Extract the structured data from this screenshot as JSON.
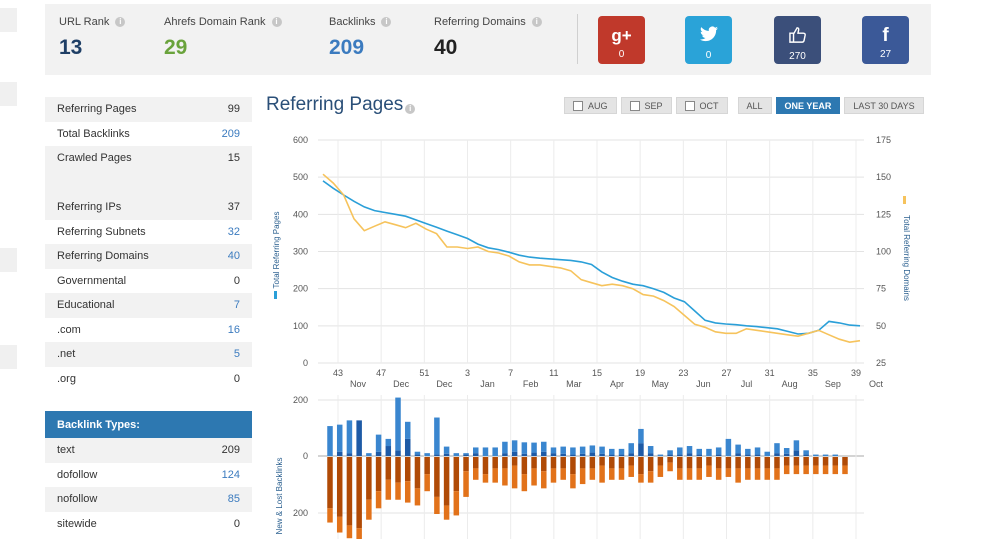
{
  "stats": [
    {
      "label": "URL Rank",
      "value": "13",
      "color": "#1f3f66"
    },
    {
      "label": "Ahrefs Domain Rank",
      "value": "29",
      "color": "#6aa33c"
    },
    {
      "label": "Backlinks",
      "value": "209",
      "color": "#3b7bbf"
    },
    {
      "label": "Referring Domains",
      "value": "40",
      "color": "#222222"
    }
  ],
  "social": [
    {
      "name": "google-plus",
      "glyph": "g+",
      "count": "0",
      "color": "#c0392b"
    },
    {
      "name": "twitter",
      "glyph": "🐦",
      "count": "0",
      "color": "#2aa3d8"
    },
    {
      "name": "like",
      "glyph": "👍",
      "count": "270",
      "color": "#3b4f7a"
    },
    {
      "name": "facebook",
      "glyph": "f",
      "count": "27",
      "color": "#3b5998"
    }
  ],
  "summary": [
    {
      "label": "Referring Pages",
      "value": "99",
      "blue": false
    },
    {
      "label": "Total Backlinks",
      "value": "209",
      "blue": true
    },
    {
      "label": "Crawled Pages",
      "value": "15",
      "blue": false
    },
    {
      "label": "",
      "value": "",
      "blue": false
    },
    {
      "label": "Referring IPs",
      "value": "37",
      "blue": false
    },
    {
      "label": "Referring Subnets",
      "value": "32",
      "blue": true
    },
    {
      "label": "Referring Domains",
      "value": "40",
      "blue": true
    },
    {
      "label": "Governmental",
      "value": "0",
      "blue": false
    },
    {
      "label": "Educational",
      "value": "7",
      "blue": true
    },
    {
      "label": ".com",
      "value": "16",
      "blue": true
    },
    {
      "label": ".net",
      "value": "5",
      "blue": true
    },
    {
      "label": ".org",
      "value": "0",
      "blue": false
    }
  ],
  "backlink_types": {
    "title": "Backlink Types:",
    "rows": [
      {
        "label": "text",
        "value": "209",
        "blue": false
      },
      {
        "label": "dofollow",
        "value": "124",
        "blue": true
      },
      {
        "label": "nofollow",
        "value": "85",
        "blue": true
      },
      {
        "label": "sitewide",
        "value": "0",
        "blue": false
      }
    ]
  },
  "chart_title": "Referring Pages",
  "filters": [
    {
      "label": "AUG",
      "checkbox": true,
      "active": false
    },
    {
      "label": "SEP",
      "checkbox": true,
      "active": false
    },
    {
      "label": "OCT",
      "checkbox": true,
      "active": false
    },
    {
      "label": "ALL",
      "checkbox": false,
      "active": false
    },
    {
      "label": "ONE YEAR",
      "checkbox": false,
      "active": true
    },
    {
      "label": "LAST 30 DAYS",
      "checkbox": false,
      "active": false
    }
  ],
  "chart_data": [
    {
      "type": "line",
      "ylabel": "Total Referring Pages",
      "y2label": "Total Referring Domains",
      "ylim": [
        0,
        600
      ],
      "y2lim": [
        25,
        175
      ],
      "yticks": [
        0,
        100,
        200,
        300,
        400,
        500,
        600
      ],
      "y2ticks": [
        25,
        50,
        75,
        100,
        125,
        150,
        175
      ],
      "week_ticks": [
        "43",
        "47",
        "51",
        "3",
        "7",
        "11",
        "15",
        "19",
        "23",
        "27",
        "31",
        "35",
        "39"
      ],
      "month_ticks": [
        "Nov",
        "Dec",
        "Dec",
        "Jan",
        "Feb",
        "Mar",
        "Apr",
        "May",
        "Jun",
        "Jul",
        "Aug",
        "Sep",
        "Oct"
      ],
      "grid": true,
      "series": [
        {
          "name": "Total Referring Pages",
          "axis": "left",
          "color": "#2a9fd8",
          "values": [
            490,
            470,
            452,
            435,
            420,
            410,
            405,
            400,
            395,
            385,
            375,
            365,
            355,
            345,
            335,
            320,
            310,
            305,
            298,
            290,
            285,
            282,
            280,
            278,
            276,
            272,
            265,
            245,
            230,
            220,
            212,
            208,
            200,
            190,
            175,
            165,
            140,
            115,
            108,
            105,
            103,
            100,
            98,
            95,
            92,
            85,
            78,
            80,
            88,
            112,
            108,
            102,
            100
          ]
        },
        {
          "name": "Total Referring Domains",
          "axis": "right",
          "color": "#f6c35c",
          "values": [
            152,
            146,
            138,
            122,
            114,
            117,
            120,
            118,
            116,
            119,
            115,
            112,
            103,
            103,
            102,
            103,
            100,
            99,
            97,
            93,
            91,
            91,
            90,
            89,
            87,
            81,
            79,
            77,
            78,
            77,
            75,
            71,
            70,
            67,
            63,
            57,
            51,
            49,
            46,
            45,
            45,
            48,
            47,
            46,
            45,
            44,
            43,
            45,
            47,
            44,
            41,
            39,
            40
          ]
        }
      ]
    },
    {
      "type": "bar",
      "ylabel": "New & Lost Backlinks",
      "yticks": [
        200,
        0,
        200
      ],
      "series": [
        {
          "name": "new_dofollow",
          "color": "#1d5aa6",
          "values": [
            0,
            15,
            10,
            125,
            0,
            15,
            35,
            20,
            60,
            5,
            0,
            5,
            8,
            0,
            5,
            10,
            0,
            0,
            10,
            15,
            8,
            12,
            15,
            10,
            8,
            5,
            8,
            12,
            8,
            5,
            5,
            10,
            45,
            10,
            0,
            5,
            5,
            10,
            5,
            0,
            5,
            0,
            10,
            5,
            5,
            0,
            10,
            8,
            20,
            5,
            0,
            0,
            0,
            0
          ]
        },
        {
          "name": "new_nofollow",
          "color": "#3a86cf",
          "values": [
            105,
            95,
            115,
            0,
            10,
            60,
            25,
            185,
            60,
            10,
            10,
            130,
            25,
            10,
            5,
            20,
            30,
            30,
            40,
            40,
            40,
            35,
            35,
            20,
            25,
            25,
            25,
            25,
            25,
            20,
            20,
            35,
            50,
            25,
            5,
            15,
            25,
            25,
            20,
            25,
            25,
            60,
            30,
            20,
            25,
            15,
            35,
            20,
            35,
            15,
            5,
            5,
            5,
            0
          ]
        },
        {
          "name": "lost_dofollow",
          "color": "#b04a06",
          "values": [
            180,
            210,
            240,
            250,
            150,
            120,
            80,
            90,
            85,
            110,
            60,
            140,
            170,
            120,
            50,
            40,
            60,
            40,
            40,
            30,
            60,
            40,
            50,
            40,
            40,
            60,
            40,
            40,
            30,
            40,
            40,
            30,
            60,
            50,
            30,
            20,
            40,
            40,
            40,
            30,
            40,
            40,
            40,
            40,
            40,
            40,
            40,
            30,
            30,
            30,
            30,
            30,
            30,
            30
          ]
        },
        {
          "name": "lost_nofollow",
          "color": "#e2721a",
          "values": [
            50,
            55,
            45,
            40,
            70,
            60,
            70,
            60,
            75,
            60,
            60,
            60,
            50,
            85,
            90,
            40,
            30,
            50,
            60,
            80,
            60,
            60,
            60,
            50,
            40,
            50,
            55,
            40,
            60,
            40,
            40,
            40,
            30,
            40,
            40,
            30,
            40,
            40,
            40,
            40,
            40,
            30,
            50,
            40,
            40,
            40,
            40,
            30,
            30,
            30,
            30,
            30,
            30,
            30
          ]
        }
      ]
    }
  ]
}
